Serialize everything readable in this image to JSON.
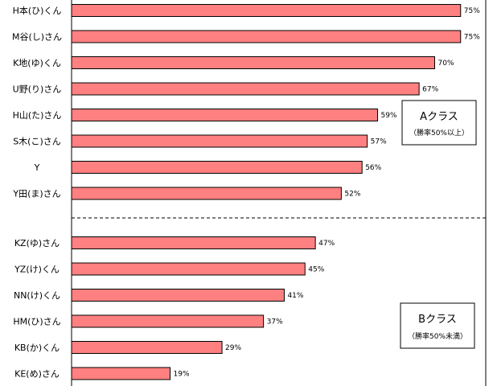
{
  "chart_data": {
    "type": "bar",
    "orientation": "horizontal",
    "unit": "%",
    "xlim": [
      0,
      100
    ],
    "grid": false,
    "bar_color": "#ff8080",
    "groups": [
      {
        "label": "Aクラス",
        "sublabel": "（勝率50%以上）",
        "categories": [
          "H本(ひ)くん",
          "M谷(し)さん",
          "K地(ゆ)くん",
          "U野(り)さん",
          "H山(た)さん",
          "S木(こ)さん",
          "Y",
          "Y田(ま)さん"
        ],
        "values": [
          75,
          75,
          70,
          67,
          59,
          57,
          56,
          52
        ]
      },
      {
        "label": "Bクラス",
        "sublabel": "（勝率50%未満）",
        "categories": [
          "KZ(ゆ)さん",
          "YZ(け)くん",
          "NN(け)くん",
          "HM(ひ)さん",
          "KB(か)くん",
          "KE(め)さん"
        ],
        "values": [
          47,
          45,
          41,
          37,
          29,
          19
        ]
      }
    ]
  }
}
